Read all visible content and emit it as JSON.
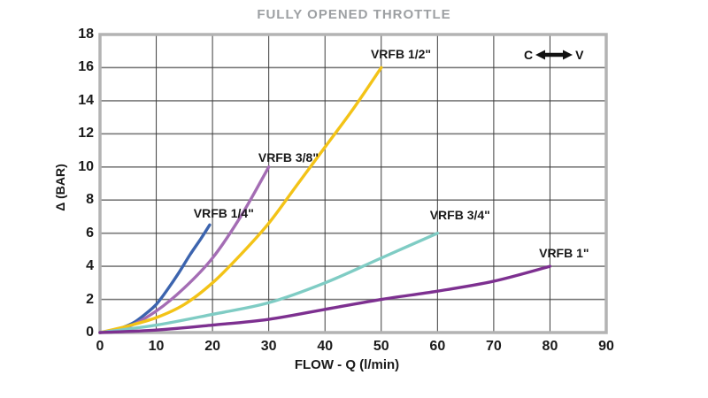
{
  "title": "FULLY OPENED THROTTLE",
  "annotation": {
    "left_label": "C",
    "right_label": "V"
  },
  "colors": {
    "background": "#ffffff",
    "title": "#9da0a3",
    "axis_frame": "#b3b3b3",
    "grid_horizontal": "#7a7a7a",
    "grid_vertical": "#3d3d3d",
    "text": "#1a1a1a"
  },
  "chart_data": {
    "type": "line",
    "title": "FULLY OPENED THROTTLE",
    "xlabel": "FLOW - Q (l/min)",
    "ylabel": "Δ (BAR)",
    "xlim": [
      0,
      90
    ],
    "ylim": [
      0,
      18
    ],
    "x_ticks": [
      0,
      10,
      20,
      30,
      40,
      50,
      60,
      70,
      80,
      90
    ],
    "y_ticks": [
      0,
      2,
      4,
      6,
      8,
      10,
      12,
      14,
      16,
      18
    ],
    "grid": true,
    "legend_position": "inline-labels-next-to-curves",
    "series": [
      {
        "name": "VRFB 1/4\"",
        "color": "#3c64ae",
        "x": [
          0,
          2,
          4,
          6,
          8,
          10,
          12,
          14,
          16,
          18,
          19.5
        ],
        "y": [
          0,
          0.1,
          0.3,
          0.6,
          1.1,
          1.7,
          2.6,
          3.6,
          4.7,
          5.7,
          6.5
        ],
        "label_x": 22,
        "label_y": 7.2
      },
      {
        "name": "VRFB 3/8\"",
        "color": "#a46db4",
        "x": [
          0,
          5,
          10,
          15,
          20,
          25,
          30
        ],
        "y": [
          0,
          0.35,
          1.3,
          2.7,
          4.5,
          7.0,
          10.0
        ],
        "label_x": 33.5,
        "label_y": 10.6
      },
      {
        "name": "VRFB 1/2\"",
        "color": "#f3c317",
        "x": [
          0,
          5,
          10,
          15,
          20,
          25,
          30,
          35,
          40,
          45,
          50
        ],
        "y": [
          0,
          0.4,
          0.9,
          1.7,
          3.0,
          4.7,
          6.6,
          8.9,
          11.2,
          13.5,
          16.0
        ],
        "label_x": 53.5,
        "label_y": 16.8
      },
      {
        "name": "VRFB 3/4\"",
        "color": "#7fccc4",
        "x": [
          0,
          10,
          20,
          30,
          40,
          50,
          60
        ],
        "y": [
          0,
          0.45,
          1.1,
          1.8,
          3.0,
          4.5,
          6.0
        ],
        "label_x": 64,
        "label_y": 7.1
      },
      {
        "name": "VRFB 1\"",
        "color": "#7d3090",
        "x": [
          0,
          10,
          20,
          30,
          40,
          50,
          60,
          70,
          80
        ],
        "y": [
          0,
          0.15,
          0.45,
          0.8,
          1.4,
          2.0,
          2.5,
          3.1,
          4.0
        ],
        "label_x": 82.5,
        "label_y": 4.8
      }
    ]
  }
}
